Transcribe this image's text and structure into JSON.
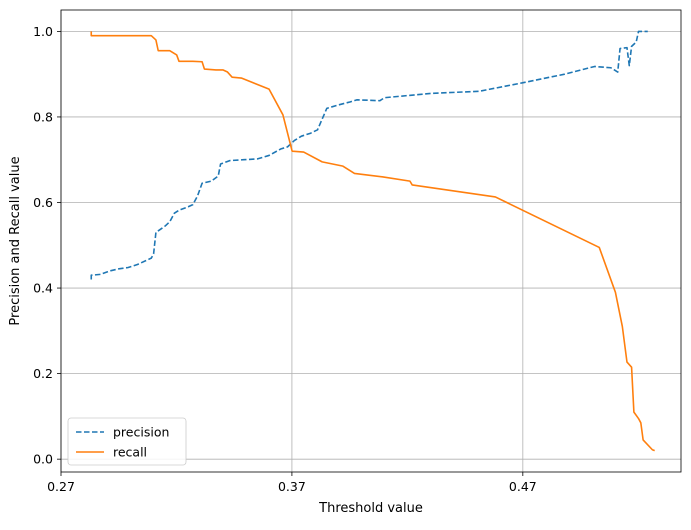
{
  "chart_data": {
    "type": "line",
    "xlabel": "Threshold value",
    "ylabel": "Precision and Recall value",
    "xlim": [
      0.27,
      0.5385
    ],
    "ylim": [
      -0.03,
      1.05
    ],
    "x_ticks": [
      0.27,
      0.37,
      0.47
    ],
    "x_tick_labels": [
      "0.27",
      "0.37",
      "0.47"
    ],
    "y_ticks": [
      0.0,
      0.2,
      0.4,
      0.6,
      0.8,
      1.0
    ],
    "y_tick_labels": [
      "0.0",
      "0.2",
      "0.4",
      "0.6",
      "0.8",
      "1.0"
    ],
    "grid": true,
    "legend_position": "lower-left",
    "series": [
      {
        "name": "precision",
        "color": "#1f77b4",
        "dash": "dashed",
        "points": [
          [
            0.2831,
            0.42
          ],
          [
            0.2831,
            0.43
          ],
          [
            0.2871,
            0.432
          ],
          [
            0.2911,
            0.44
          ],
          [
            0.2951,
            0.445
          ],
          [
            0.2991,
            0.448
          ],
          [
            0.3031,
            0.455
          ],
          [
            0.3071,
            0.465
          ],
          [
            0.3091,
            0.47
          ],
          [
            0.3101,
            0.48
          ],
          [
            0.3111,
            0.53
          ],
          [
            0.3151,
            0.545
          ],
          [
            0.3171,
            0.555
          ],
          [
            0.3191,
            0.575
          ],
          [
            0.3211,
            0.582
          ],
          [
            0.3251,
            0.59
          ],
          [
            0.3271,
            0.595
          ],
          [
            0.3291,
            0.615
          ],
          [
            0.3311,
            0.645
          ],
          [
            0.3351,
            0.65
          ],
          [
            0.3381,
            0.662
          ],
          [
            0.3391,
            0.69
          ],
          [
            0.3431,
            0.698
          ],
          [
            0.3491,
            0.7
          ],
          [
            0.3551,
            0.702
          ],
          [
            0.3601,
            0.71
          ],
          [
            0.3651,
            0.725
          ],
          [
            0.3681,
            0.73
          ],
          [
            0.3711,
            0.745
          ],
          [
            0.3741,
            0.755
          ],
          [
            0.3781,
            0.762
          ],
          [
            0.3811,
            0.77
          ],
          [
            0.3851,
            0.82
          ],
          [
            0.3901,
            0.828
          ],
          [
            0.3951,
            0.835
          ],
          [
            0.3981,
            0.84
          ],
          [
            0.4081,
            0.838
          ],
          [
            0.4101,
            0.845
          ],
          [
            0.4301,
            0.855
          ],
          [
            0.4511,
            0.86
          ],
          [
            0.4701,
            0.88
          ],
          [
            0.4881,
            0.9
          ],
          [
            0.5011,
            0.918
          ],
          [
            0.5081,
            0.915
          ],
          [
            0.5111,
            0.905
          ],
          [
            0.5121,
            0.96
          ],
          [
            0.5151,
            0.962
          ],
          [
            0.5161,
            0.92
          ],
          [
            0.5171,
            0.965
          ],
          [
            0.5191,
            0.975
          ],
          [
            0.5201,
            1.0
          ],
          [
            0.5241,
            1.0
          ]
        ]
      },
      {
        "name": "recall",
        "color": "#ff7f0e",
        "dash": "solid",
        "points": [
          [
            0.2831,
            1.0
          ],
          [
            0.2831,
            0.99
          ],
          [
            0.3091,
            0.99
          ],
          [
            0.3111,
            0.98
          ],
          [
            0.3121,
            0.955
          ],
          [
            0.3171,
            0.955
          ],
          [
            0.3201,
            0.945
          ],
          [
            0.3211,
            0.93
          ],
          [
            0.3271,
            0.93
          ],
          [
            0.3311,
            0.929
          ],
          [
            0.3321,
            0.912
          ],
          [
            0.3371,
            0.91
          ],
          [
            0.3401,
            0.91
          ],
          [
            0.3421,
            0.905
          ],
          [
            0.3441,
            0.893
          ],
          [
            0.3481,
            0.891
          ],
          [
            0.3601,
            0.865
          ],
          [
            0.3661,
            0.805
          ],
          [
            0.3701,
            0.72
          ],
          [
            0.3751,
            0.718
          ],
          [
            0.3831,
            0.695
          ],
          [
            0.3921,
            0.685
          ],
          [
            0.3971,
            0.668
          ],
          [
            0.4091,
            0.66
          ],
          [
            0.4211,
            0.65
          ],
          [
            0.4221,
            0.641
          ],
          [
            0.4581,
            0.613
          ],
          [
            0.5031,
            0.495
          ],
          [
            0.5101,
            0.39
          ],
          [
            0.5131,
            0.31
          ],
          [
            0.5151,
            0.227
          ],
          [
            0.5171,
            0.215
          ],
          [
            0.5181,
            0.11
          ],
          [
            0.5201,
            0.095
          ],
          [
            0.5211,
            0.085
          ],
          [
            0.5221,
            0.045
          ],
          [
            0.5261,
            0.022
          ],
          [
            0.5271,
            0.02
          ]
        ]
      }
    ]
  }
}
